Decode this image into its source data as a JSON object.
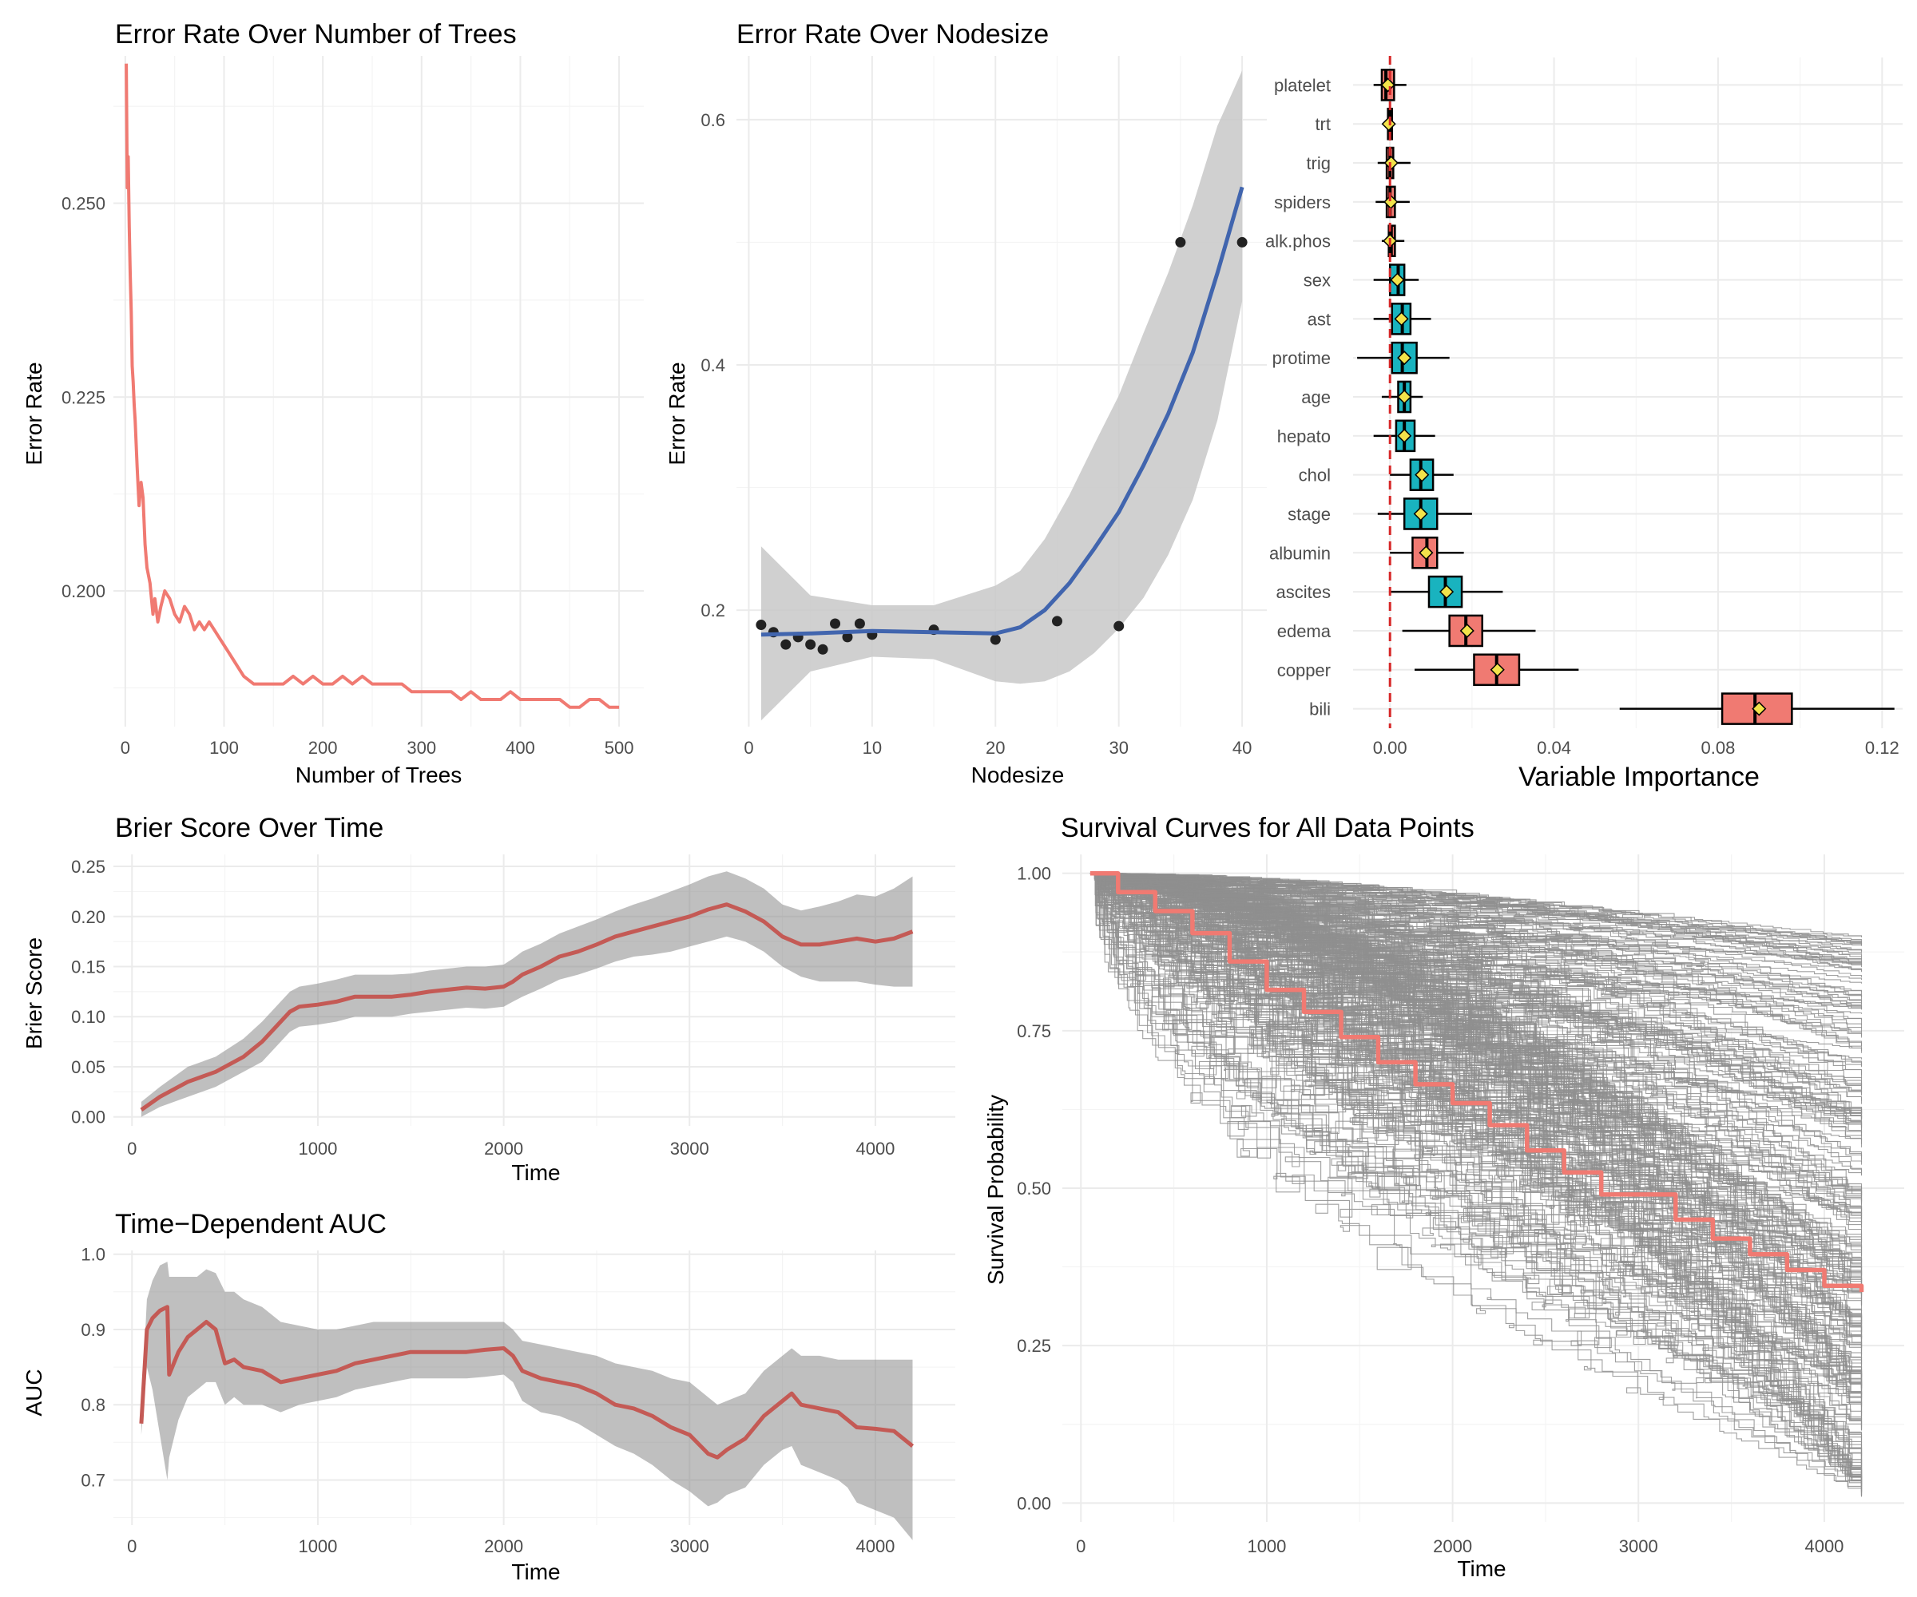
{
  "chart_data": [
    {
      "id": "error_trees",
      "type": "line",
      "title": "Error Rate Over Number of Trees",
      "xlabel": "Number of Trees",
      "ylabel": "Error Rate",
      "xlim": [
        -12,
        525
      ],
      "ylim": [
        0.1825,
        0.269
      ],
      "xticks": [
        0,
        100,
        200,
        300,
        400,
        500
      ],
      "xtick_labels": [
        "0",
        "100",
        "200",
        "300",
        "400",
        "500"
      ],
      "yticks": [
        0.2,
        0.225,
        0.25
      ],
      "ytick_labels": [
        "0.200",
        "0.225",
        "0.250"
      ],
      "color": "#F07A72",
      "series": [
        {
          "x": [
            1,
            2,
            3,
            4,
            5,
            6,
            7,
            8,
            9,
            10,
            12,
            14,
            16,
            18,
            20,
            22,
            25,
            28,
            30,
            33,
            36,
            40,
            45,
            50,
            55,
            60,
            65,
            70,
            75,
            80,
            85,
            90,
            95,
            100,
            105,
            110,
            115,
            120,
            130,
            140,
            150,
            160,
            170,
            180,
            190,
            200,
            210,
            220,
            230,
            240,
            250,
            260,
            270,
            280,
            290,
            300,
            310,
            320,
            330,
            340,
            350,
            360,
            370,
            380,
            390,
            400,
            410,
            420,
            430,
            440,
            450,
            460,
            470,
            480,
            490,
            500
          ],
          "y": [
            0.268,
            0.252,
            0.256,
            0.247,
            0.241,
            0.236,
            0.229,
            0.227,
            0.224,
            0.222,
            0.216,
            0.211,
            0.214,
            0.212,
            0.206,
            0.203,
            0.201,
            0.197,
            0.199,
            0.196,
            0.198,
            0.2,
            0.199,
            0.197,
            0.196,
            0.198,
            0.197,
            0.195,
            0.196,
            0.195,
            0.196,
            0.195,
            0.194,
            0.193,
            0.192,
            0.191,
            0.19,
            0.189,
            0.188,
            0.188,
            0.188,
            0.188,
            0.189,
            0.188,
            0.189,
            0.188,
            0.188,
            0.189,
            0.188,
            0.189,
            0.188,
            0.188,
            0.188,
            0.188,
            0.187,
            0.187,
            0.187,
            0.187,
            0.187,
            0.186,
            0.187,
            0.186,
            0.186,
            0.186,
            0.187,
            0.186,
            0.186,
            0.186,
            0.186,
            0.186,
            0.185,
            0.185,
            0.186,
            0.186,
            0.185,
            0.185
          ]
        }
      ]
    },
    {
      "id": "error_nodesize",
      "type": "scatter",
      "title": "Error Rate Over Nodesize",
      "xlabel": "Nodesize",
      "ylabel": "Error Rate",
      "xlim": [
        -1,
        42
      ],
      "ylim": [
        0.105,
        0.652
      ],
      "xticks": [
        0,
        10,
        20,
        30,
        40
      ],
      "xtick_labels": [
        "0",
        "10",
        "20",
        "30",
        "40"
      ],
      "yticks": [
        0.2,
        0.4,
        0.6
      ],
      "ytick_labels": [
        "0.2",
        "0.4",
        "0.6"
      ],
      "points": {
        "x": [
          1,
          2,
          3,
          4,
          5,
          6,
          7,
          8,
          9,
          10,
          15,
          20,
          25,
          30,
          35,
          40
        ],
        "y": [
          0.188,
          0.182,
          0.172,
          0.178,
          0.172,
          0.168,
          0.189,
          0.178,
          0.189,
          0.18,
          0.184,
          0.176,
          0.191,
          0.187,
          0.5,
          0.5
        ]
      },
      "smooth": {
        "color": "#4165AE",
        "x": [
          1,
          5,
          10,
          15,
          20,
          22,
          24,
          26,
          28,
          30,
          32,
          34,
          36,
          38,
          40
        ],
        "y": [
          0.18,
          0.181,
          0.183,
          0.182,
          0.181,
          0.186,
          0.2,
          0.222,
          0.25,
          0.28,
          0.318,
          0.36,
          0.41,
          0.475,
          0.545
        ],
        "lower": [
          0.11,
          0.15,
          0.162,
          0.16,
          0.142,
          0.14,
          0.142,
          0.15,
          0.165,
          0.185,
          0.21,
          0.245,
          0.29,
          0.355,
          0.452
        ],
        "upper": [
          0.252,
          0.212,
          0.204,
          0.204,
          0.22,
          0.232,
          0.258,
          0.294,
          0.335,
          0.375,
          0.426,
          0.475,
          0.53,
          0.595,
          0.64
        ]
      }
    },
    {
      "id": "variable_importance",
      "type": "boxplot",
      "xlabel": "Variable Importance",
      "xlim": [
        -0.009,
        0.125
      ],
      "xticks": [
        0,
        0.04,
        0.08,
        0.12
      ],
      "xtick_labels": [
        "0.00",
        "0.04",
        "0.08",
        "0.12"
      ],
      "reference_line": 0,
      "negative_color": "#F07A72",
      "positive_color": "#19B3BF",
      "variables": [
        {
          "name": "platelet",
          "min": -0.004,
          "q1": -0.002,
          "median": -0.001,
          "q3": 0.001,
          "max": 0.004,
          "mean": -0.0005,
          "group": "negative"
        },
        {
          "name": "trt",
          "min": -0.001,
          "q1": -0.0005,
          "median": 0.0,
          "q3": 0.0005,
          "max": 0.001,
          "mean": -0.0003,
          "group": "negative"
        },
        {
          "name": "trig",
          "min": -0.003,
          "q1": -0.0008,
          "median": 0.0,
          "q3": 0.0008,
          "max": 0.005,
          "mean": 0.0003,
          "group": "negative"
        },
        {
          "name": "spiders",
          "min": -0.0035,
          "q1": -0.0008,
          "median": 0.0,
          "q3": 0.0012,
          "max": 0.0048,
          "mean": 0.0002,
          "group": "negative"
        },
        {
          "name": "alk.phos",
          "min": -0.002,
          "q1": -0.0003,
          "median": 0.0003,
          "q3": 0.0012,
          "max": 0.0035,
          "mean": 0.0,
          "group": "negative"
        },
        {
          "name": "sex",
          "min": -0.004,
          "q1": 0.0,
          "median": 0.002,
          "q3": 0.0035,
          "max": 0.007,
          "mean": 0.0018,
          "group": "positive"
        },
        {
          "name": "ast",
          "min": -0.004,
          "q1": 0.0005,
          "median": 0.003,
          "q3": 0.005,
          "max": 0.01,
          "mean": 0.0028,
          "group": "positive"
        },
        {
          "name": "protime",
          "min": -0.008,
          "q1": 0.0005,
          "median": 0.003,
          "q3": 0.0065,
          "max": 0.0145,
          "mean": 0.0035,
          "group": "positive"
        },
        {
          "name": "age",
          "min": -0.002,
          "q1": 0.002,
          "median": 0.0035,
          "q3": 0.005,
          "max": 0.008,
          "mean": 0.0035,
          "group": "positive"
        },
        {
          "name": "hepato",
          "min": -0.004,
          "q1": 0.0015,
          "median": 0.0035,
          "q3": 0.006,
          "max": 0.011,
          "mean": 0.0035,
          "group": "positive"
        },
        {
          "name": "chol",
          "min": 0.0,
          "q1": 0.005,
          "median": 0.0075,
          "q3": 0.0105,
          "max": 0.0155,
          "mean": 0.0078,
          "group": "positive"
        },
        {
          "name": "stage",
          "min": -0.003,
          "q1": 0.0035,
          "median": 0.0075,
          "q3": 0.0115,
          "max": 0.02,
          "mean": 0.0075,
          "group": "positive"
        },
        {
          "name": "albumin",
          "min": 0.0,
          "q1": 0.0055,
          "median": 0.009,
          "q3": 0.0115,
          "max": 0.018,
          "mean": 0.0088,
          "group": "negative"
        },
        {
          "name": "ascites",
          "min": 0.0,
          "q1": 0.0095,
          "median": 0.0135,
          "q3": 0.0175,
          "max": 0.0275,
          "mean": 0.0138,
          "group": "positive"
        },
        {
          "name": "edema",
          "min": 0.003,
          "q1": 0.0145,
          "median": 0.0185,
          "q3": 0.0225,
          "max": 0.0355,
          "mean": 0.0188,
          "group": "negative"
        },
        {
          "name": "copper",
          "min": 0.006,
          "q1": 0.0205,
          "median": 0.026,
          "q3": 0.0315,
          "max": 0.046,
          "mean": 0.0262,
          "group": "negative"
        },
        {
          "name": "bili",
          "min": 0.056,
          "q1": 0.081,
          "median": 0.089,
          "q3": 0.098,
          "max": 0.123,
          "mean": 0.09,
          "group": "negative"
        }
      ]
    },
    {
      "id": "brier",
      "type": "area",
      "title": "Brier Score Over Time",
      "xlabel": "Time",
      "ylabel": "Brier Score",
      "xlim": [
        -100,
        4430
      ],
      "ylim": [
        -0.009,
        0.262
      ],
      "xticks": [
        0,
        1000,
        2000,
        3000,
        4000
      ],
      "xtick_labels": [
        "0",
        "1000",
        "2000",
        "3000",
        "4000"
      ],
      "yticks": [
        0,
        0.05,
        0.1,
        0.15,
        0.2,
        0.25
      ],
      "ytick_labels": [
        "0.00",
        "0.05",
        "0.10",
        "0.15",
        "0.20",
        "0.25"
      ],
      "line_color": "#C45A55",
      "x": [
        50,
        150,
        300,
        450,
        600,
        700,
        800,
        850,
        900,
        1000,
        1100,
        1200,
        1300,
        1400,
        1500,
        1600,
        1700,
        1800,
        1900,
        2000,
        2050,
        2100,
        2200,
        2300,
        2400,
        2500,
        2600,
        2700,
        2800,
        2900,
        3000,
        3100,
        3200,
        3300,
        3400,
        3500,
        3600,
        3700,
        3800,
        3900,
        4000,
        4100,
        4200
      ],
      "y": [
        0.007,
        0.02,
        0.035,
        0.045,
        0.06,
        0.075,
        0.095,
        0.105,
        0.11,
        0.112,
        0.115,
        0.12,
        0.12,
        0.12,
        0.122,
        0.125,
        0.127,
        0.129,
        0.128,
        0.13,
        0.135,
        0.142,
        0.15,
        0.16,
        0.165,
        0.172,
        0.18,
        0.185,
        0.19,
        0.195,
        0.2,
        0.207,
        0.212,
        0.205,
        0.195,
        0.18,
        0.172,
        0.172,
        0.175,
        0.178,
        0.175,
        0.178,
        0.185
      ],
      "lower": [
        0.0,
        0.01,
        0.02,
        0.03,
        0.045,
        0.055,
        0.075,
        0.085,
        0.09,
        0.092,
        0.095,
        0.1,
        0.1,
        0.1,
        0.103,
        0.105,
        0.107,
        0.109,
        0.108,
        0.11,
        0.115,
        0.12,
        0.128,
        0.137,
        0.142,
        0.148,
        0.155,
        0.16,
        0.162,
        0.165,
        0.17,
        0.175,
        0.18,
        0.175,
        0.165,
        0.15,
        0.14,
        0.135,
        0.135,
        0.135,
        0.132,
        0.13,
        0.13
      ],
      "upper": [
        0.015,
        0.03,
        0.05,
        0.06,
        0.078,
        0.095,
        0.115,
        0.125,
        0.13,
        0.133,
        0.137,
        0.142,
        0.142,
        0.142,
        0.143,
        0.146,
        0.148,
        0.15,
        0.15,
        0.152,
        0.158,
        0.165,
        0.173,
        0.183,
        0.19,
        0.197,
        0.205,
        0.212,
        0.218,
        0.225,
        0.232,
        0.24,
        0.245,
        0.238,
        0.228,
        0.212,
        0.206,
        0.21,
        0.215,
        0.222,
        0.22,
        0.228,
        0.24
      ]
    },
    {
      "id": "auc",
      "type": "area",
      "title": "Time−Dependent AUC",
      "xlabel": "Time",
      "ylabel": "AUC",
      "xlim": [
        -100,
        4430
      ],
      "ylim": [
        0.64,
        1.005
      ],
      "xticks": [
        0,
        1000,
        2000,
        3000,
        4000
      ],
      "xtick_labels": [
        "0",
        "1000",
        "2000",
        "3000",
        "4000"
      ],
      "yticks": [
        0.7,
        0.8,
        0.9,
        1.0
      ],
      "ytick_labels": [
        "0.7",
        "0.8",
        "0.9",
        "1.0"
      ],
      "line_color": "#C45A55",
      "x": [
        50,
        80,
        110,
        150,
        190,
        200,
        250,
        300,
        350,
        400,
        450,
        500,
        550,
        600,
        700,
        800,
        900,
        1000,
        1100,
        1200,
        1300,
        1400,
        1500,
        1600,
        1700,
        1800,
        1900,
        2000,
        2050,
        2100,
        2200,
        2300,
        2400,
        2500,
        2600,
        2700,
        2800,
        2900,
        3000,
        3100,
        3150,
        3200,
        3300,
        3400,
        3500,
        3550,
        3600,
        3700,
        3800,
        3850,
        3900,
        4000,
        4100,
        4200
      ],
      "y": [
        0.775,
        0.9,
        0.915,
        0.925,
        0.93,
        0.84,
        0.87,
        0.89,
        0.9,
        0.91,
        0.9,
        0.855,
        0.86,
        0.85,
        0.845,
        0.83,
        0.835,
        0.84,
        0.845,
        0.855,
        0.86,
        0.865,
        0.87,
        0.87,
        0.87,
        0.87,
        0.873,
        0.875,
        0.865,
        0.845,
        0.835,
        0.83,
        0.825,
        0.815,
        0.8,
        0.795,
        0.785,
        0.77,
        0.76,
        0.735,
        0.73,
        0.74,
        0.755,
        0.785,
        0.805,
        0.815,
        0.8,
        0.795,
        0.79,
        0.78,
        0.77,
        0.768,
        0.765,
        0.745
      ],
      "lower": [
        0.76,
        0.85,
        0.82,
        0.76,
        0.7,
        0.73,
        0.78,
        0.81,
        0.82,
        0.83,
        0.83,
        0.8,
        0.81,
        0.8,
        0.8,
        0.79,
        0.8,
        0.805,
        0.81,
        0.82,
        0.825,
        0.83,
        0.835,
        0.835,
        0.835,
        0.835,
        0.837,
        0.84,
        0.83,
        0.805,
        0.79,
        0.785,
        0.775,
        0.76,
        0.745,
        0.735,
        0.72,
        0.7,
        0.685,
        0.665,
        0.67,
        0.68,
        0.69,
        0.72,
        0.74,
        0.745,
        0.72,
        0.71,
        0.7,
        0.69,
        0.67,
        0.66,
        0.65,
        0.62
      ],
      "upper": [
        0.79,
        0.94,
        0.965,
        0.985,
        0.99,
        0.97,
        0.97,
        0.97,
        0.97,
        0.98,
        0.975,
        0.95,
        0.95,
        0.94,
        0.93,
        0.91,
        0.905,
        0.9,
        0.9,
        0.905,
        0.91,
        0.91,
        0.91,
        0.91,
        0.91,
        0.91,
        0.91,
        0.91,
        0.9,
        0.885,
        0.88,
        0.875,
        0.87,
        0.865,
        0.855,
        0.85,
        0.845,
        0.835,
        0.83,
        0.81,
        0.8,
        0.805,
        0.815,
        0.845,
        0.865,
        0.875,
        0.865,
        0.865,
        0.86,
        0.86,
        0.86,
        0.86,
        0.86,
        0.86
      ]
    },
    {
      "id": "survival",
      "type": "line",
      "title": "Survival Curves for All Data Points",
      "xlabel": "Time",
      "ylabel": "Survival Probability",
      "xlim": [
        -100,
        4430
      ],
      "ylim": [
        -0.03,
        1.03
      ],
      "xticks": [
        0,
        1000,
        2000,
        3000,
        4000
      ],
      "xtick_labels": [
        "0",
        "1000",
        "2000",
        "3000",
        "4000"
      ],
      "yticks": [
        0,
        0.25,
        0.5,
        0.75,
        1.0
      ],
      "ytick_labels": [
        "0.00",
        "0.25",
        "0.50",
        "0.75",
        "1.00"
      ],
      "individual_curves": {
        "count": 276,
        "color": "#8F8F8F",
        "final_value_range": [
          0.01,
          0.9
        ]
      },
      "mean_curve": {
        "color": "#F07A72",
        "x": [
          50,
          200,
          400,
          600,
          800,
          1000,
          1200,
          1400,
          1600,
          1800,
          2000,
          2200,
          2400,
          2600,
          2800,
          3000,
          3200,
          3400,
          3600,
          3800,
          4000,
          4200
        ],
        "y": [
          1.0,
          0.97,
          0.94,
          0.905,
          0.86,
          0.815,
          0.78,
          0.74,
          0.7,
          0.665,
          0.635,
          0.6,
          0.56,
          0.525,
          0.49,
          0.49,
          0.45,
          0.42,
          0.395,
          0.37,
          0.345,
          0.335
        ]
      }
    }
  ]
}
